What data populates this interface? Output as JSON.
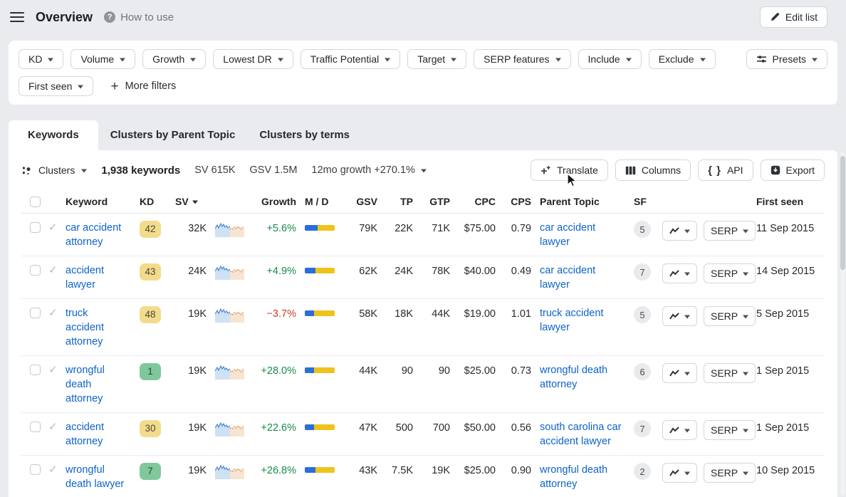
{
  "header": {
    "title": "Overview",
    "help_label": "How to use",
    "edit_list_label": "Edit list"
  },
  "filters": {
    "row1": [
      "KD",
      "Volume",
      "Growth",
      "Lowest DR",
      "Traffic Potential",
      "Target",
      "SERP features",
      "Include",
      "Exclude"
    ],
    "presets_label": "Presets",
    "row2": [
      "First seen"
    ],
    "more_filters_label": "More filters"
  },
  "tabs": [
    {
      "label": "Keywords",
      "active": true
    },
    {
      "label": "Clusters by Parent Topic",
      "active": false
    },
    {
      "label": "Clusters by terms",
      "active": false
    }
  ],
  "toolbar": {
    "clusters_label": "Clusters",
    "keywords_count": "1,938 keywords",
    "sv_stat": "SV 615K",
    "gsv_stat": "GSV 1.5M",
    "growth_stat": "12mo growth +270.1%",
    "translate_label": "Translate",
    "columns_label": "Columns",
    "api_label": "API",
    "export_label": "Export"
  },
  "table": {
    "columns": [
      "Keyword",
      "KD",
      "SV",
      "Growth",
      "M / D",
      "GSV",
      "TP",
      "GTP",
      "CPC",
      "CPS",
      "Parent Topic",
      "SF",
      "First seen"
    ],
    "serp_label": "SERP",
    "rows": [
      {
        "keyword": "car accident\nattorney",
        "kd": "42",
        "kd_color": "yellow",
        "sv": "32K",
        "growth": "+5.6%",
        "growth_color": "green",
        "md_blue_pct": 42,
        "gsv": "79K",
        "tp": "22K",
        "gtp": "71K",
        "cpc": "$75.00",
        "cps": "0.79",
        "parent": "car accident\nlawyer",
        "sf": "5",
        "first_seen": "11 Sep 2015"
      },
      {
        "keyword": "accident\nlawyer",
        "kd": "43",
        "kd_color": "yellow",
        "sv": "24K",
        "growth": "+4.9%",
        "growth_color": "green",
        "md_blue_pct": 36,
        "gsv": "62K",
        "tp": "24K",
        "gtp": "78K",
        "cpc": "$40.00",
        "cps": "0.49",
        "parent": "car accident\nlawyer",
        "sf": "7",
        "first_seen": "14 Sep 2015"
      },
      {
        "keyword": "truck\naccident\nattorney",
        "kd": "48",
        "kd_color": "yellow",
        "sv": "19K",
        "growth": "−3.7%",
        "growth_color": "red",
        "md_blue_pct": 30,
        "gsv": "58K",
        "tp": "18K",
        "gtp": "44K",
        "cpc": "$19.00",
        "cps": "1.01",
        "parent": "truck accident\nlawyer",
        "sf": "5",
        "first_seen": "5 Sep 2015"
      },
      {
        "keyword": "wrongful\ndeath\nattorney",
        "kd": "1",
        "kd_color": "green",
        "sv": "19K",
        "growth": "+28.0%",
        "growth_color": "green",
        "md_blue_pct": 32,
        "gsv": "44K",
        "tp": "90",
        "gtp": "90",
        "cpc": "$25.00",
        "cps": "0.73",
        "parent": "wrongful death\nattorney",
        "sf": "6",
        "first_seen": "1 Sep 2015"
      },
      {
        "keyword": "accident\nattorney",
        "kd": "30",
        "kd_color": "yellow",
        "sv": "19K",
        "growth": "+22.6%",
        "growth_color": "green",
        "md_blue_pct": 30,
        "gsv": "47K",
        "tp": "500",
        "gtp": "700",
        "cpc": "$50.00",
        "cps": "0.56",
        "parent": "south carolina car\naccident lawyer",
        "sf": "7",
        "first_seen": "1 Sep 2015"
      },
      {
        "keyword": "wrongful\ndeath lawyer",
        "kd": "7",
        "kd_color": "green",
        "sv": "19K",
        "growth": "+26.8%",
        "growth_color": "green",
        "md_blue_pct": 36,
        "gsv": "43K",
        "tp": "7.5K",
        "gtp": "19K",
        "cpc": "$25.00",
        "cps": "0.90",
        "parent": "wrongful death\nattorney",
        "sf": "2",
        "first_seen": "10 Sep 2015"
      }
    ]
  },
  "icons": {
    "checkmark": "✓",
    "help": "?",
    "api_braces": "{ }"
  },
  "colors": {
    "link_blue": "#0d64c8",
    "green": "#178a4c",
    "red": "#cb3a2a",
    "kd_yellow_bg": "#f2dc8c",
    "kd_green_bg": "#7fc89b",
    "md_blue": "#2a6fd9",
    "md_yellow": "#eec31c",
    "page_bg": "#e9ebee"
  }
}
